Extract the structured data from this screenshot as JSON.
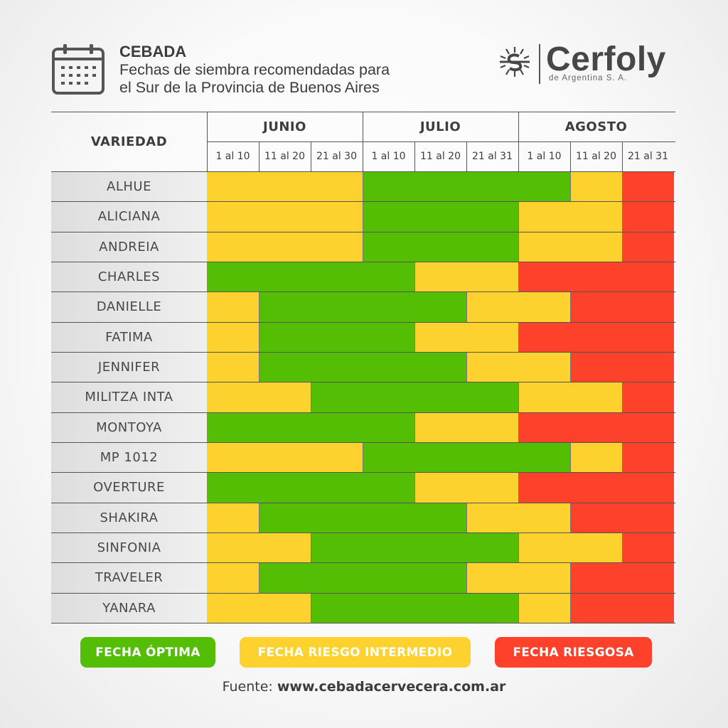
{
  "header": {
    "title": "CEBADA",
    "subtitle_line1": "Fechas de siembra recomendadas para",
    "subtitle_line2": "el Sur de la Provincia de Buenos Aires"
  },
  "brand": {
    "name": "Cerfoly",
    "tagline": "de Argentina S. A."
  },
  "colors": {
    "optimal": "#54be04",
    "intermediate": "#fdd22f",
    "risky": "#fd412b"
  },
  "chart_data": {
    "type": "table",
    "row_header": "VARIEDAD",
    "months": [
      "JUNIO",
      "JULIO",
      "AGOSTO"
    ],
    "periods": [
      "1 al 10",
      "11 al 20",
      "21 al 30",
      "1 al 10",
      "11 al 20",
      "21 al 31",
      "1 al 10",
      "11 al 20",
      "21 al 31"
    ],
    "rows": [
      {
        "name": "ALHUE",
        "risk": [
          "I",
          "I",
          "I",
          "O",
          "O",
          "O",
          "O",
          "I",
          "R"
        ]
      },
      {
        "name": "ALICIANA",
        "risk": [
          "I",
          "I",
          "I",
          "O",
          "O",
          "O",
          "I",
          "I",
          "R"
        ]
      },
      {
        "name": "ANDREIA",
        "risk": [
          "I",
          "I",
          "I",
          "O",
          "O",
          "O",
          "I",
          "I",
          "R"
        ]
      },
      {
        "name": "CHARLES",
        "risk": [
          "O",
          "O",
          "O",
          "O",
          "I",
          "I",
          "R",
          "R",
          "R"
        ]
      },
      {
        "name": "DANIELLE",
        "risk": [
          "I",
          "O",
          "O",
          "O",
          "O",
          "I",
          "I",
          "R",
          "R"
        ]
      },
      {
        "name": "FATIMA",
        "risk": [
          "I",
          "O",
          "O",
          "O",
          "I",
          "I",
          "R",
          "R",
          "R"
        ]
      },
      {
        "name": "JENNIFER",
        "risk": [
          "I",
          "O",
          "O",
          "O",
          "O",
          "I",
          "I",
          "R",
          "R"
        ]
      },
      {
        "name": "MILITZA INTA",
        "risk": [
          "I",
          "I",
          "O",
          "O",
          "O",
          "O",
          "I",
          "I",
          "R"
        ]
      },
      {
        "name": "MONTOYA",
        "risk": [
          "O",
          "O",
          "O",
          "O",
          "I",
          "I",
          "R",
          "R",
          "R"
        ]
      },
      {
        "name": "MP 1012",
        "risk": [
          "I",
          "I",
          "I",
          "O",
          "O",
          "O",
          "O",
          "I",
          "R"
        ]
      },
      {
        "name": "OVERTURE",
        "risk": [
          "O",
          "O",
          "O",
          "O",
          "I",
          "I",
          "R",
          "R",
          "R"
        ]
      },
      {
        "name": "SHAKIRA",
        "risk": [
          "I",
          "O",
          "O",
          "O",
          "O",
          "I",
          "I",
          "R",
          "R"
        ]
      },
      {
        "name": "SINFONIA",
        "risk": [
          "I",
          "I",
          "O",
          "O",
          "O",
          "O",
          "I",
          "I",
          "R"
        ]
      },
      {
        "name": "TRAVELER",
        "risk": [
          "I",
          "O",
          "O",
          "O",
          "O",
          "I",
          "I",
          "R",
          "R"
        ]
      },
      {
        "name": "YANARA",
        "risk": [
          "I",
          "I",
          "O",
          "O",
          "O",
          "O",
          "I",
          "R",
          "R"
        ]
      }
    ],
    "legend": [
      {
        "key": "O",
        "label": "FECHA ÓPTIMA"
      },
      {
        "key": "I",
        "label": "FECHA RIESGO INTERMEDIO"
      },
      {
        "key": "R",
        "label": "FECHA RIESGOSA"
      }
    ]
  },
  "footer": {
    "source_prefix": "Fuente:",
    "source_url": "www.cebadacervecera.com.ar"
  }
}
